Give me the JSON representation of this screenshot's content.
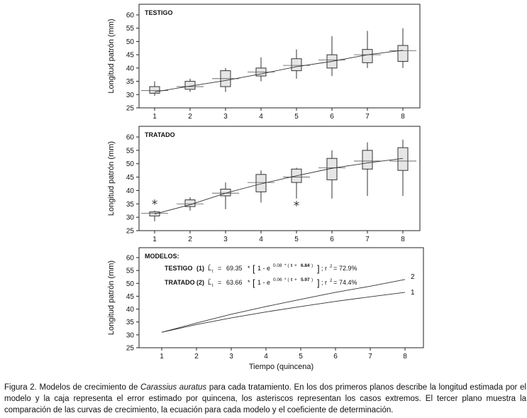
{
  "chart_data": [
    {
      "type": "box",
      "panel_title": "TESTIGO",
      "ylabel": "Longitud patrón (mm)",
      "xlabel": "",
      "x": [
        1,
        2,
        3,
        4,
        5,
        6,
        7,
        8
      ],
      "x_ticks": [
        "1",
        "2",
        "3",
        "4",
        "5",
        "6",
        "7",
        "8"
      ],
      "y_ticks": [
        "25",
        "30",
        "35",
        "40",
        "45",
        "50",
        "55",
        "60"
      ],
      "ylim": [
        25,
        62
      ],
      "boxes": [
        {
          "x": 1,
          "min": 29.5,
          "q1": 30.5,
          "median": 31.5,
          "q3": 33.0,
          "max": 35.0
        },
        {
          "x": 2,
          "min": 31.0,
          "q1": 32.0,
          "median": 33.0,
          "q3": 35.0,
          "max": 36.0
        },
        {
          "x": 3,
          "min": 31.0,
          "q1": 33.0,
          "median": 36.0,
          "q3": 39.0,
          "max": 40.0
        },
        {
          "x": 4,
          "min": 35.0,
          "q1": 37.0,
          "median": 38.5,
          "q3": 40.0,
          "max": 44.0
        },
        {
          "x": 5,
          "min": 36.0,
          "q1": 39.0,
          "median": 41.0,
          "q3": 43.5,
          "max": 47.0
        },
        {
          "x": 6,
          "min": 37.0,
          "q1": 40.0,
          "median": 43.0,
          "q3": 45.0,
          "max": 52.0
        },
        {
          "x": 7,
          "min": 40.0,
          "q1": 42.0,
          "median": 45.0,
          "q3": 47.0,
          "max": 54.0
        },
        {
          "x": 8,
          "min": 40.0,
          "q1": 42.5,
          "median": 46.5,
          "q3": 48.5,
          "max": 55.0
        }
      ],
      "model_curve": [
        31.0,
        33.2,
        35.3,
        37.8,
        40.5,
        42.5,
        45.0,
        46.7
      ]
    },
    {
      "type": "box",
      "panel_title": "TRATADO",
      "ylabel": "Longitud patrón (mm)",
      "xlabel": "",
      "x": [
        1,
        2,
        3,
        4,
        5,
        6,
        7,
        8
      ],
      "x_ticks": [
        "1",
        "2",
        "3",
        "4",
        "5",
        "6",
        "7",
        "8"
      ],
      "y_ticks": [
        "25",
        "30",
        "35",
        "40",
        "45",
        "50",
        "55",
        "60"
      ],
      "ylim": [
        25,
        62
      ],
      "boxes": [
        {
          "x": 1,
          "min": 28.5,
          "q1": 30.5,
          "median": 31.5,
          "q3": 32.0,
          "max": 32.5
        },
        {
          "x": 2,
          "min": 32.5,
          "q1": 34.0,
          "median": 35.0,
          "q3": 36.5,
          "max": 37.5
        },
        {
          "x": 3,
          "min": 33.0,
          "q1": 38.0,
          "median": 39.0,
          "q3": 40.5,
          "max": 43.0
        },
        {
          "x": 4,
          "min": 35.5,
          "q1": 39.5,
          "median": 43.0,
          "q3": 46.0,
          "max": 47.5
        },
        {
          "x": 5,
          "min": 37.0,
          "q1": 43.0,
          "median": 45.0,
          "q3": 48.0,
          "max": 48.5
        },
        {
          "x": 6,
          "min": 37.0,
          "q1": 44.0,
          "median": 48.5,
          "q3": 52.0,
          "max": 55.0
        },
        {
          "x": 7,
          "min": 38.0,
          "q1": 48.0,
          "median": 51.0,
          "q3": 55.0,
          "max": 58.0
        },
        {
          "x": 8,
          "min": 38.0,
          "q1": 47.5,
          "median": 51.0,
          "q3": 56.0,
          "max": 59.0
        }
      ],
      "outliers": [
        {
          "x": 1,
          "y": 35.5
        },
        {
          "x": 5,
          "y": 35.0
        }
      ],
      "model_curve": [
        31.2,
        34.7,
        39.0,
        42.5,
        45.5,
        48.3,
        50.3,
        52.0
      ]
    },
    {
      "type": "line",
      "panel_title": "MODELOS:",
      "ylabel": "Longitud patrón (mm)",
      "xlabel": "Tiempo (quincena)",
      "x": [
        1,
        2,
        3,
        4,
        5,
        6,
        7,
        8
      ],
      "x_ticks": [
        "1",
        "2",
        "3",
        "4",
        "5",
        "6",
        "7",
        "8"
      ],
      "y_ticks": [
        "25",
        "30",
        "35",
        "40",
        "45",
        "50",
        "55",
        "60"
      ],
      "ylim": [
        25,
        62
      ],
      "series": [
        {
          "label": "1",
          "values": [
            31.0,
            34.0,
            36.6,
            38.9,
            41.0,
            43.0,
            44.8,
            46.5
          ]
        },
        {
          "label": "2",
          "values": [
            31.0,
            34.6,
            38.0,
            41.0,
            43.8,
            46.5,
            48.9,
            51.5
          ]
        }
      ],
      "equations": [
        {
          "name": "TESTIGO",
          "num": "(1)",
          "a": "69.35",
          "k": "0.08",
          "t0": "6.84",
          "r2": "72.9%"
        },
        {
          "name": "TRATADO",
          "num": "(2)",
          "a": "63.66",
          "k": "0.06",
          "t0": "5.97",
          "r2": "74.4%"
        }
      ]
    }
  ],
  "caption": {
    "prefix": "Figura 2. Modelos de crecimiento de ",
    "species": "Carassius auratus",
    "rest": " para cada tratamiento. En los dos primeros planos describe la longitud estimada por el modelo y la caja representa el error estimado por quincena, los asteriscos representan los casos extremos. El tercer plano muestra la comparación de las curvas de crecimiento, la ecuación para cada modelo y el coeficiente de determinación."
  }
}
